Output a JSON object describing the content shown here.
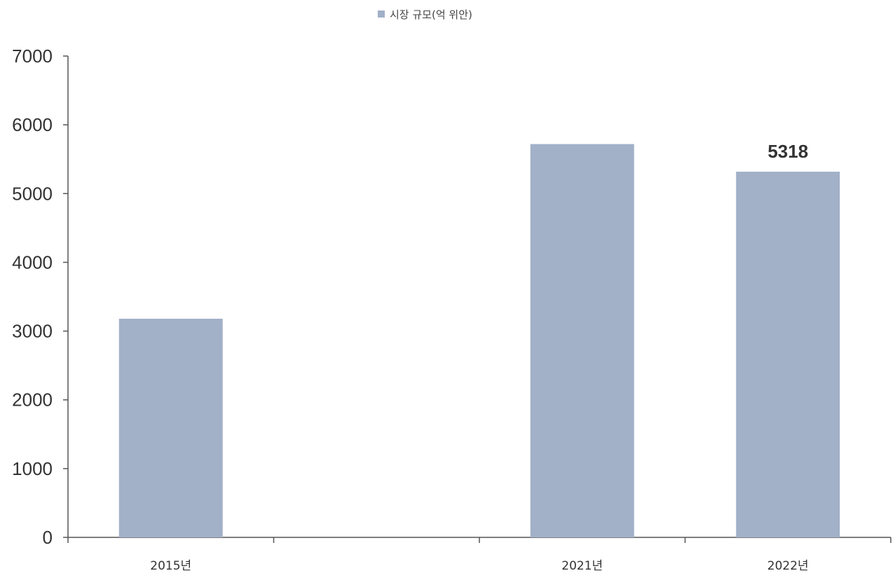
{
  "chart_data": {
    "type": "bar",
    "categories": [
      "2015년",
      "",
      "2021년",
      "2022년"
    ],
    "series": [
      {
        "name": "시장 규모(억 위안)",
        "values": [
          3180,
          null,
          5720,
          5318
        ],
        "color": "#a2b0c8"
      }
    ],
    "data_labels": [
      "",
      "",
      "",
      "5318"
    ],
    "ylim": [
      0,
      7000
    ],
    "yticks": [
      0,
      1000,
      2000,
      3000,
      4000,
      5000,
      6000,
      7000
    ],
    "xlabel": "",
    "ylabel": "",
    "grid": false,
    "legend_position": "top-center"
  }
}
